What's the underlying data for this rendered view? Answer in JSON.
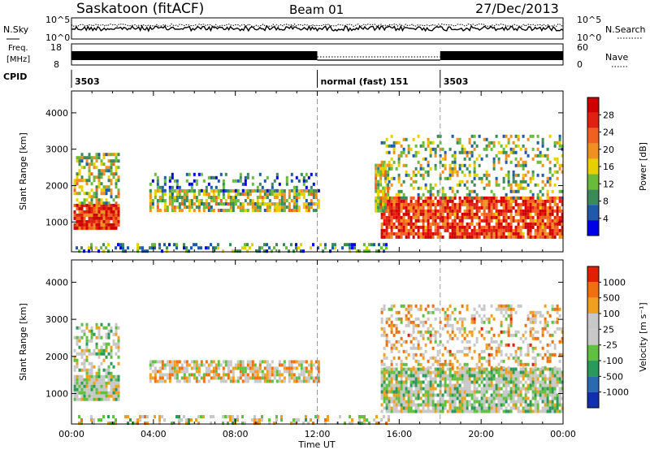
{
  "header": {
    "station": "Saskatoon (fitACF)",
    "beam": "Beam 01",
    "date": "27/Dec/2013"
  },
  "noise_panel": {
    "left_label": "N.Sky",
    "right_label": "N.Search",
    "left_ticks": [
      "10^5",
      "10^0"
    ],
    "right_ticks": [
      "10^5",
      "10^0"
    ]
  },
  "freq_panel": {
    "left_label_1": "Freq.",
    "left_label_2": "[MHz]",
    "right_label": "Nave",
    "left_ticks": [
      "18",
      "8"
    ],
    "right_ticks": [
      "60",
      "0"
    ]
  },
  "cpid_panel": {
    "label": "CPID",
    "segments": [
      {
        "start_hour": 0,
        "text": "3503"
      },
      {
        "start_hour": 12,
        "text": "normal (fast) 151"
      },
      {
        "start_hour": 18,
        "text": "3503"
      }
    ]
  },
  "x_axis": {
    "label": "Time UT",
    "ticks": [
      "00:00",
      "04:00",
      "08:00",
      "12:00",
      "16:00",
      "20:00",
      "00:00"
    ]
  },
  "chart_data": [
    {
      "type": "heatmap",
      "name": "power",
      "xlabel": "Time UT",
      "ylabel": "Slant Range [km]",
      "xlim_hours": [
        0,
        24
      ],
      "ylim": [
        180,
        4600
      ],
      "y_ticks": [
        1000,
        2000,
        3000,
        4000
      ],
      "y_tick_labels": [
        "1000",
        "2000",
        "3000",
        "4000"
      ],
      "colorbar": {
        "label": "Power [dB]",
        "ticks": [
          "28",
          "24",
          "20",
          "16",
          "12",
          "8",
          "4"
        ],
        "colors": [
          "#0000e8",
          "#1e5aa8",
          "#3a8a5a",
          "#6abb3a",
          "#e8d000",
          "#f09020",
          "#f06020",
          "#e02010",
          "#d00000"
        ]
      },
      "regions": [
        {
          "t0": 0.1,
          "t1": 2.3,
          "r0": 800,
          "r1": 1500,
          "level": 0.85,
          "density": 0.95
        },
        {
          "t0": 0.1,
          "t1": 2.3,
          "r0": 1500,
          "r1": 2900,
          "level": 0.45,
          "density": 0.55
        },
        {
          "t0": 3.8,
          "t1": 12.1,
          "r0": 1350,
          "r1": 1900,
          "level": 0.45,
          "density": 0.7
        },
        {
          "t0": 3.8,
          "t1": 12.1,
          "r0": 1900,
          "r1": 2350,
          "level": 0.2,
          "density": 0.3
        },
        {
          "t0": 15.1,
          "t1": 24,
          "r0": 550,
          "r1": 1700,
          "level": 0.8,
          "density": 0.85
        },
        {
          "t0": 15.1,
          "t1": 24,
          "r0": 1700,
          "r1": 3400,
          "level": 0.4,
          "density": 0.3
        },
        {
          "t0": 14.8,
          "t1": 15.4,
          "r0": 1300,
          "r1": 2600,
          "level": 0.55,
          "density": 0.8
        },
        {
          "t0": 0.2,
          "t1": 15.5,
          "r0": 180,
          "r1": 420,
          "level": 0.3,
          "density": 0.35
        }
      ]
    },
    {
      "type": "heatmap",
      "name": "velocity",
      "xlabel": "Time UT",
      "ylabel": "Slant Range [km]",
      "xlim_hours": [
        0,
        24
      ],
      "ylim": [
        180,
        4600
      ],
      "y_ticks": [
        1000,
        2000,
        3000,
        4000
      ],
      "y_tick_labels": [
        "1000",
        "2000",
        "3000",
        "4000"
      ],
      "colorbar": {
        "label": "Velocity [m s⁻¹]",
        "ticks": [
          "1000",
          "500",
          "100",
          "25",
          "-25",
          "-100",
          "-500",
          "-1000"
        ],
        "colors": [
          "#1030b0",
          "#2a6ab0",
          "#2a9a5a",
          "#60c040",
          "#c8c8c8",
          "#c8c8c8",
          "#f0a020",
          "#f07010",
          "#e02000"
        ]
      },
      "regions": [
        {
          "t0": 0.1,
          "t1": 2.3,
          "r0": 800,
          "r1": 1500,
          "level": 0.5,
          "density": 0.95
        },
        {
          "t0": 0.1,
          "t1": 2.3,
          "r0": 1500,
          "r1": 2900,
          "level": 0.5,
          "density": 0.5
        },
        {
          "t0": 3.8,
          "t1": 12.1,
          "r0": 1350,
          "r1": 1900,
          "level": 0.62,
          "density": 0.7
        },
        {
          "t0": 15.1,
          "t1": 24,
          "r0": 550,
          "r1": 1700,
          "level": 0.5,
          "density": 0.85
        },
        {
          "t0": 15.1,
          "t1": 24,
          "r0": 1700,
          "r1": 3400,
          "level": 0.65,
          "density": 0.35
        },
        {
          "t0": 0.2,
          "t1": 15.5,
          "r0": 180,
          "r1": 420,
          "level": 0.55,
          "density": 0.35
        }
      ]
    }
  ]
}
